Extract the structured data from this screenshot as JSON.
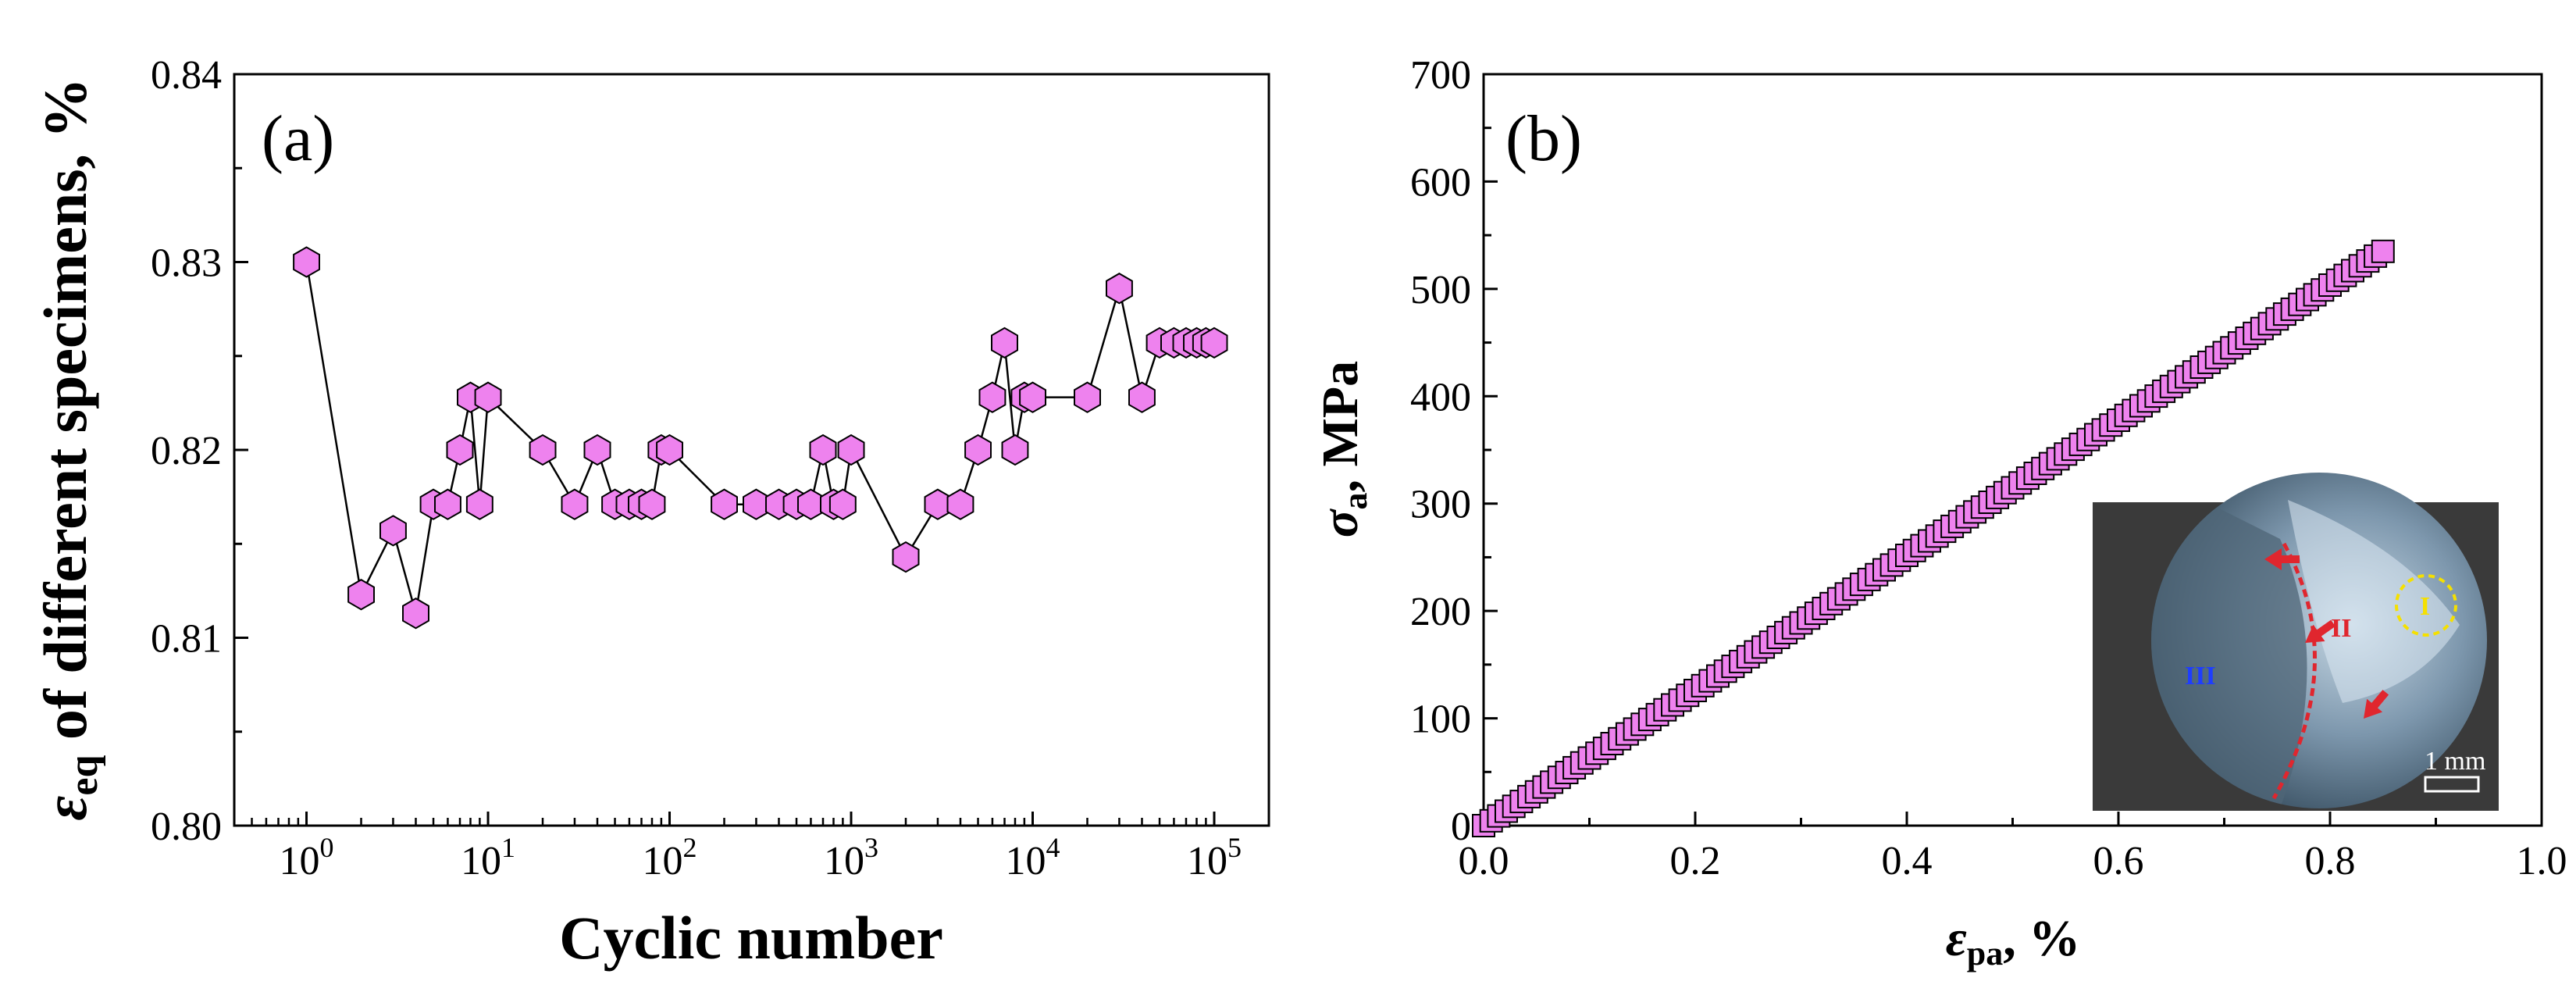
{
  "chart_data": [
    {
      "panel": "(a)",
      "type": "line",
      "xscale": "log",
      "xlabel": "Cyclic number",
      "ylabel_symbol": "ε",
      "ylabel_sub": "eq",
      "ylabel_rest": " of different specimens, %",
      "xlim": [
        0.4,
        200000
      ],
      "ylim": [
        0.8,
        0.84
      ],
      "yticks": [
        "0.80",
        "0.81",
        "0.82",
        "0.83",
        "0.84"
      ],
      "xticks": [
        {
          "base": "10",
          "exp": "0",
          "value": 1
        },
        {
          "base": "10",
          "exp": "1",
          "value": 10
        },
        {
          "base": "10",
          "exp": "2",
          "value": 100
        },
        {
          "base": "10",
          "exp": "3",
          "value": 1000
        },
        {
          "base": "10",
          "exp": "4",
          "value": 10000
        },
        {
          "base": "10",
          "exp": "5",
          "value": 100000
        }
      ],
      "marker": "hexagon",
      "marker_color": "#ee82ee",
      "x": [
        1,
        2,
        3,
        4,
        5,
        6,
        7,
        8,
        9,
        10,
        20,
        30,
        40,
        50,
        60,
        70,
        80,
        90,
        100,
        200,
        300,
        400,
        500,
        600,
        700,
        800,
        900,
        1000,
        2000,
        3000,
        4000,
        5000,
        6000,
        7000,
        8000,
        9000,
        10000,
        20000,
        30000,
        40000,
        50000,
        60000,
        70000,
        80000,
        90000,
        100000
      ],
      "y": [
        0.83,
        0.8123,
        0.8157,
        0.8113,
        0.8171,
        0.8171,
        0.82,
        0.8228,
        0.8171,
        0.8228,
        0.82,
        0.8171,
        0.82,
        0.8171,
        0.8171,
        0.8171,
        0.8171,
        0.82,
        0.82,
        0.8171,
        0.8171,
        0.8171,
        0.8171,
        0.8171,
        0.82,
        0.8171,
        0.8171,
        0.82,
        0.8143,
        0.8171,
        0.8171,
        0.82,
        0.8228,
        0.8257,
        0.82,
        0.8228,
        0.8228,
        0.8228,
        0.8286,
        0.8228,
        0.8257,
        0.8257,
        0.8257,
        0.8257,
        0.8257,
        0.8257
      ]
    },
    {
      "panel": "(b)",
      "type": "scatter",
      "xlabel_symbol": "ε",
      "xlabel_sub": "pa",
      "xlabel_rest": ", %",
      "ylabel_symbol": "σ",
      "ylabel_sub": "a",
      "ylabel_rest": ", MPa",
      "xlim": [
        0.0,
        1.0
      ],
      "ylim": [
        0,
        700
      ],
      "xticks": [
        "0.0",
        "0.2",
        "0.4",
        "0.6",
        "0.8",
        "1.0"
      ],
      "yticks": [
        "0",
        "100",
        "200",
        "300",
        "400",
        "500",
        "600",
        "700"
      ],
      "marker": "square",
      "marker_color": "#ee82ee",
      "x_start": 0.0,
      "x_end": 0.85,
      "y_start": 0,
      "y_end": 535,
      "n_points": 120,
      "inset": {
        "description_labels": [
          "I",
          "II",
          "III"
        ],
        "scale_bar": "1 mm"
      }
    }
  ]
}
